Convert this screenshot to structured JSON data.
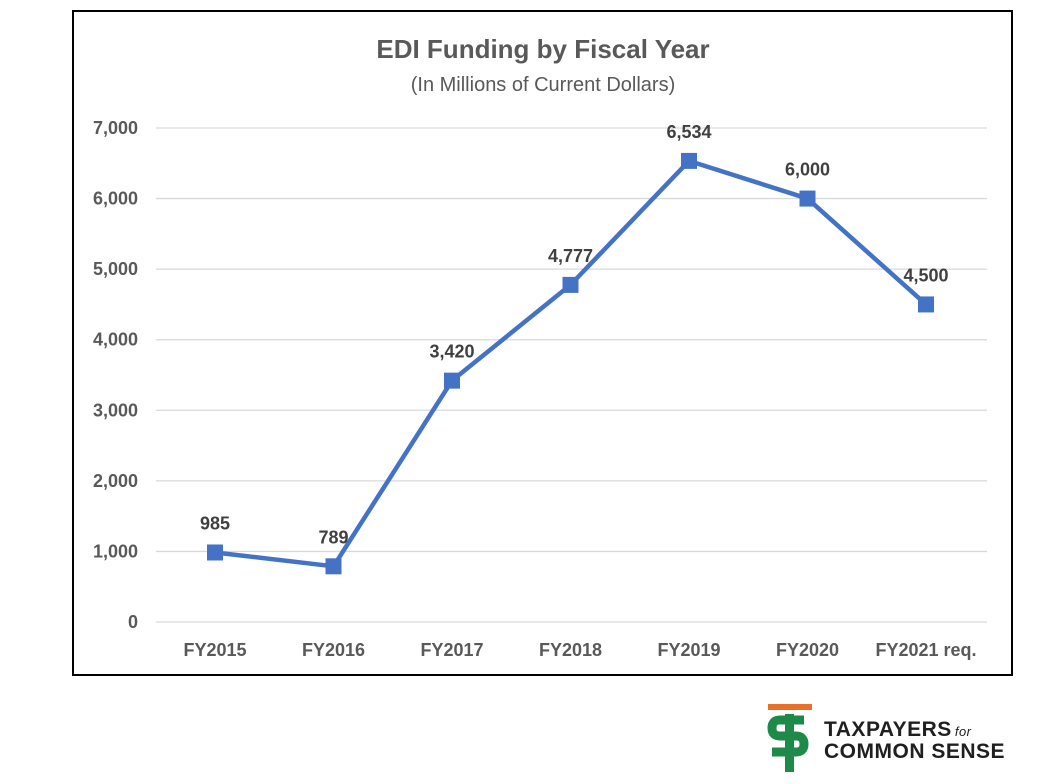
{
  "chart_data": {
    "type": "line",
    "title": "EDI Funding by Fiscal Year",
    "subtitle": "(In Millions of Current Dollars)",
    "categories": [
      "FY2015",
      "FY2016",
      "FY2017",
      "FY2018",
      "FY2019",
      "FY2020",
      "FY2021 req."
    ],
    "series": [
      {
        "values": [
          985,
          789,
          3420,
          4777,
          6534,
          6000,
          4500
        ],
        "labels": [
          "985",
          "789",
          "3,420",
          "4,777",
          "6,534",
          "6,000",
          "4,500"
        ],
        "color": "#4472C4",
        "marker": "square"
      }
    ],
    "yticks": [
      "0",
      "1,000",
      "2,000",
      "3,000",
      "4,000",
      "5,000",
      "6,000",
      "7,000"
    ],
    "ylim": [
      0,
      7000
    ],
    "grid": true,
    "legend": "none"
  },
  "logo": {
    "line1": "TAXPAYERS",
    "line1_small": "for",
    "line2": "COMMON SENSE",
    "colors": {
      "orange": "#E8702A",
      "green": "#1E8A4A"
    }
  }
}
